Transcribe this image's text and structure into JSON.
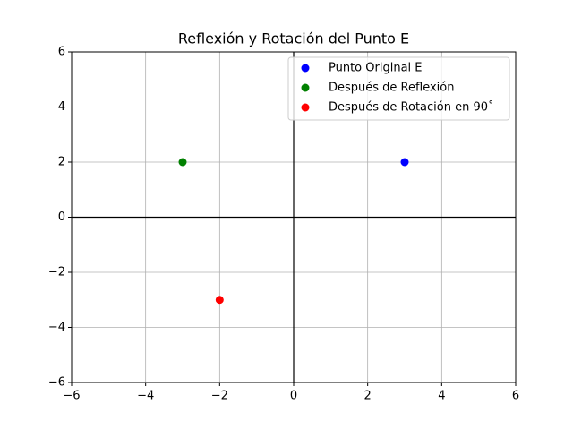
{
  "chart_data": {
    "type": "scatter",
    "title": "Reflexión y Rotación del Punto E",
    "series": [
      {
        "name": "Punto Original E",
        "color": "#0000ff",
        "x": [
          3
        ],
        "values": [
          2
        ]
      },
      {
        "name": "Después de Reflexión",
        "color": "#008000",
        "x": [
          -3
        ],
        "values": [
          2
        ]
      },
      {
        "name": "Después de Rotación en 90˚",
        "color": "#ff0000",
        "x": [
          -2
        ],
        "values": [
          -3
        ]
      }
    ],
    "xlim": [
      -6,
      6
    ],
    "ylim": [
      -6,
      6
    ],
    "xticks": [
      {
        "value": -6,
        "label": "−6"
      },
      {
        "value": -4,
        "label": "−4"
      },
      {
        "value": -2,
        "label": "−2"
      },
      0,
      2,
      4,
      6
    ],
    "yticks": [
      {
        "value": -6,
        "label": "−6"
      },
      {
        "value": -4,
        "label": "−4"
      },
      {
        "value": -2,
        "label": "−2"
      },
      0,
      2,
      4,
      6
    ],
    "grid": true,
    "zero_lines": true,
    "legend": "upper right"
  }
}
